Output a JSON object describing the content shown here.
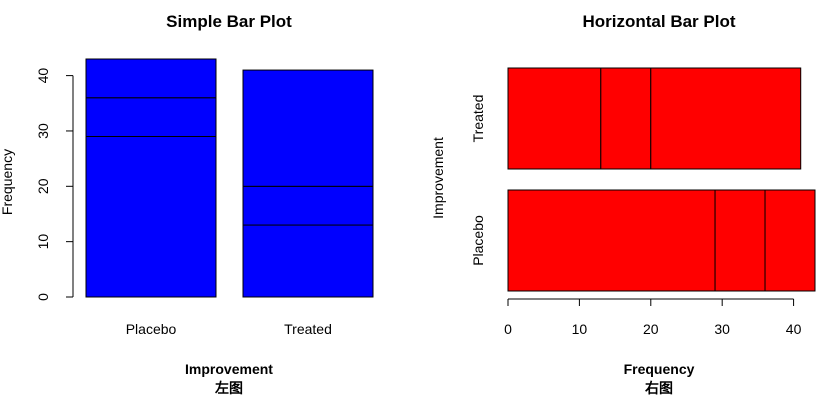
{
  "chart_data": [
    {
      "type": "bar",
      "stacked": true,
      "orientation": "vertical",
      "title": "Simple Bar Plot",
      "xlabel": "Improvement",
      "ylabel": "Frequency",
      "caption": "左图",
      "categories": [
        "Placebo",
        "Treated"
      ],
      "segments": [
        {
          "values": [
            29,
            13
          ]
        },
        {
          "values": [
            7,
            7
          ]
        },
        {
          "values": [
            7,
            21
          ]
        }
      ],
      "totals": [
        43,
        41
      ],
      "ylim": [
        0,
        43
      ],
      "yticks": [
        0,
        10,
        20,
        30,
        40
      ],
      "bar_color": "#0000ff",
      "border_color": "#000000"
    },
    {
      "type": "bar",
      "stacked": true,
      "orientation": "horizontal",
      "title": "Horizontal Bar Plot",
      "xlabel": "Frequency",
      "ylabel": "Improvement",
      "caption": "右图",
      "categories": [
        "Placebo",
        "Treated"
      ],
      "segments": [
        {
          "values": [
            29,
            13
          ]
        },
        {
          "values": [
            7,
            7
          ]
        },
        {
          "values": [
            7,
            21
          ]
        }
      ],
      "totals": [
        43,
        41
      ],
      "xlim": [
        0,
        43
      ],
      "xticks": [
        0,
        10,
        20,
        30,
        40
      ],
      "bar_color": "#ff0000",
      "border_color": "#000000"
    }
  ]
}
